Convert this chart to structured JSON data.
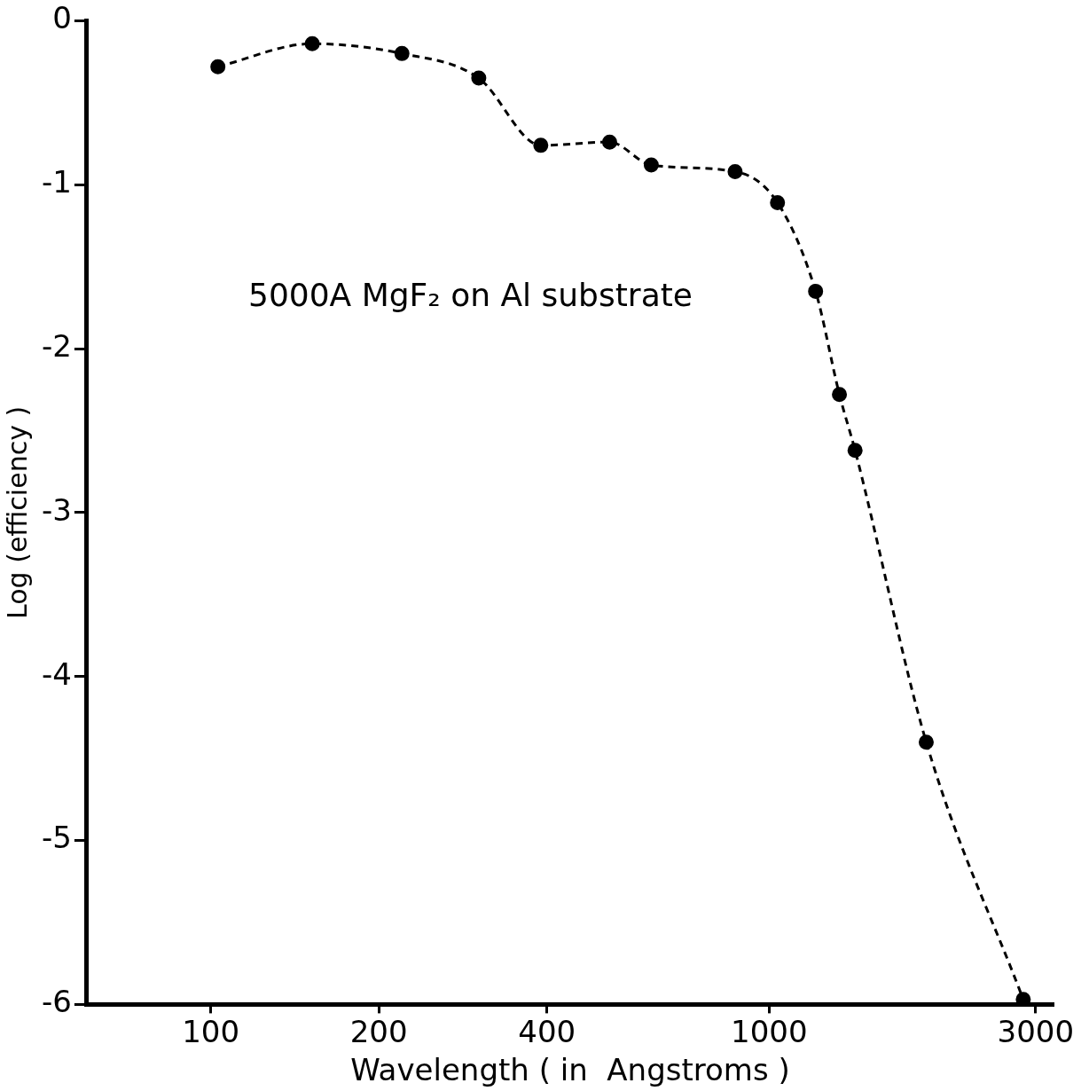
{
  "chart_data": {
    "type": "line",
    "xlabel": "Wavelength ( in  Angstroms )",
    "ylabel": "Log (efficiency )",
    "x": [
      103,
      152,
      220,
      302,
      390,
      518,
      615,
      869,
      1035,
      1211,
      1336,
      1425,
      1911,
      2851
    ],
    "series": [
      {
        "color": "#000000",
        "values": [
          -0.28,
          -0.14,
          -0.2,
          -0.35,
          -0.76,
          -0.74,
          -0.88,
          -0.92,
          -1.11,
          -1.65,
          -2.28,
          -2.62,
          -4.4,
          -5.97
        ]
      }
    ],
    "xlim": [
      60,
      3230
    ],
    "xticks": [
      100,
      200,
      400,
      1000,
      3000
    ],
    "log": "x",
    "ylim": [
      -6,
      0
    ],
    "yticks": [
      -6,
      -5,
      -4,
      -3,
      -2,
      -1,
      0
    ],
    "grid": false,
    "legend": false,
    "marker": "circle",
    "line_style": "dashed",
    "annotations": [
      "5000A MgF₂ on Al substrate"
    ]
  }
}
